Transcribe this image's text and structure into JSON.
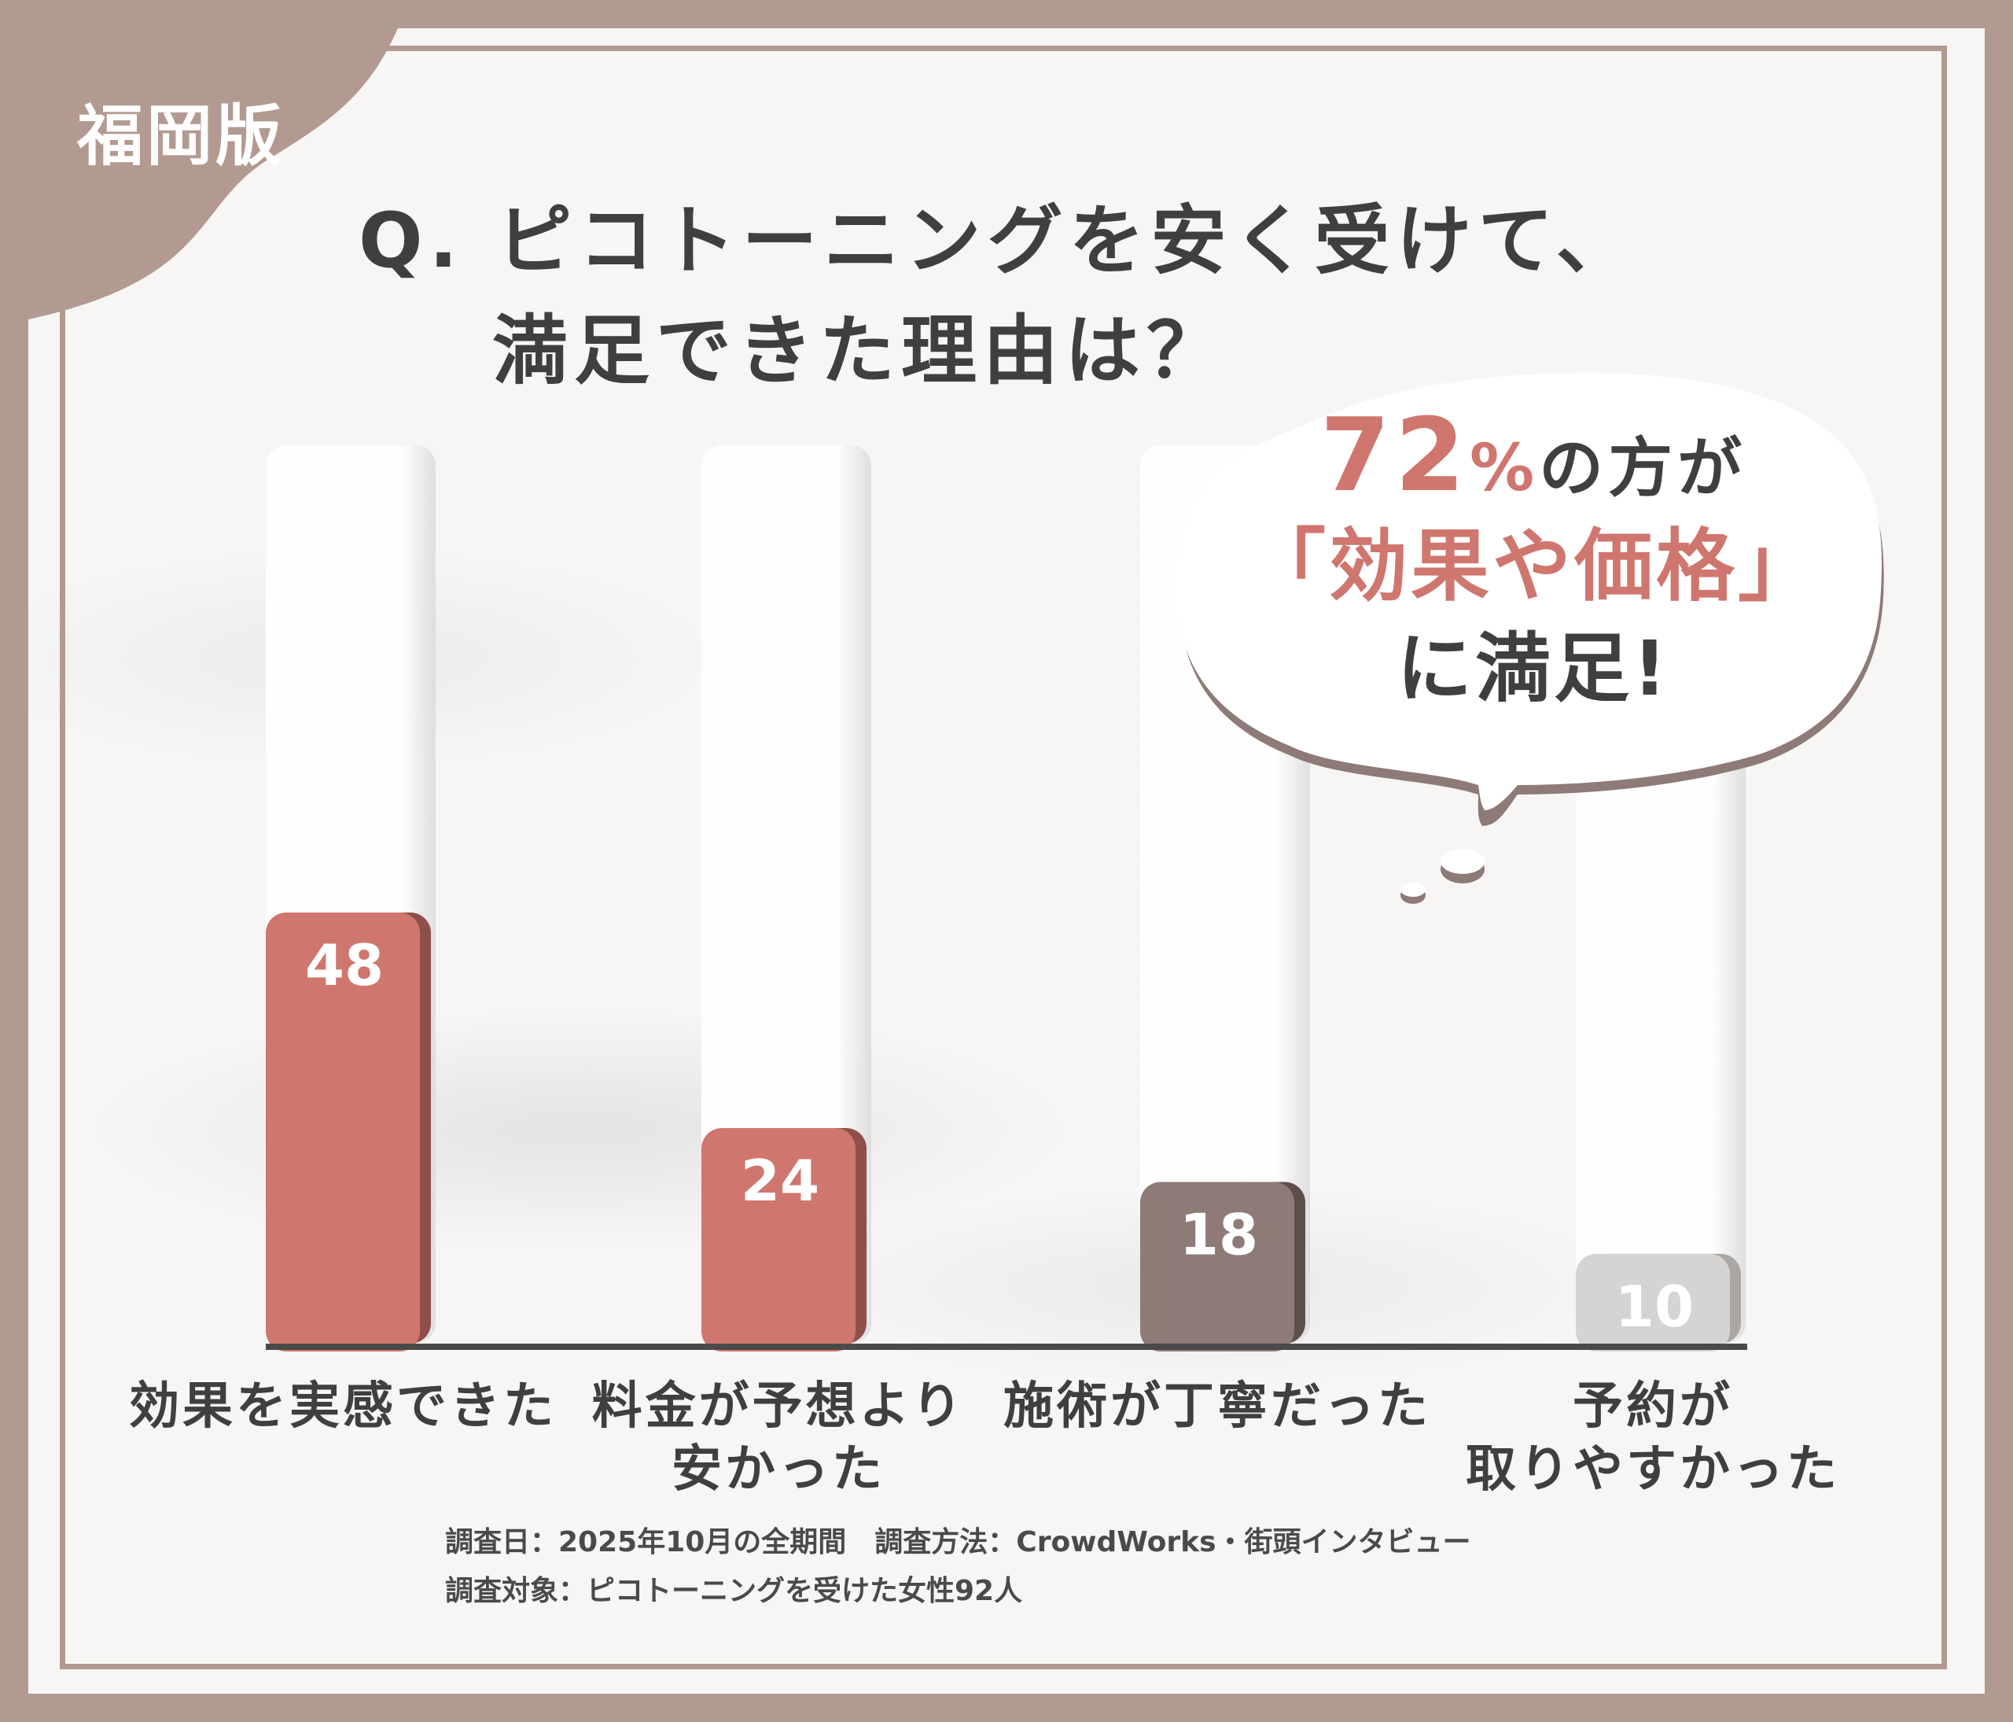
{
  "badge": {
    "label": "福岡版"
  },
  "title": {
    "line1": "Q. ピコトーニングを安く受けて、",
    "line2": "満足できた理由は？"
  },
  "callout": {
    "value": "72",
    "unit": "%",
    "line1_suffix": "の方が",
    "line2": "「効果や価格」",
    "line3": "に満足!"
  },
  "chart_data": {
    "type": "bar",
    "categories": [
      "効果を実感できた",
      "料金が予想より\n安かった",
      "施術が丁寧だった",
      "予約が\n取りやすかった"
    ],
    "values": [
      48,
      24,
      18,
      10
    ],
    "bar_colors": [
      "#cf766f",
      "#cf766f",
      "#8e7a77",
      "#d6d4d3"
    ],
    "ylim": [
      0,
      48
    ],
    "grid": false,
    "title": "Q. ピコトーニングを安く受けて、満足できた理由は？"
  },
  "footer": {
    "line1": "調査日：2025年10月の全期間　調査方法：CrowdWorks・街頭インタビュー",
    "line2": "調査対象：ピコトーニングを受けた女性92人"
  },
  "colors": {
    "frame": "#b39a91",
    "accent": "#cf766f",
    "dark_bar": "#8e7a77",
    "light_bar": "#d6d4d3",
    "text": "#3f3f3f"
  }
}
